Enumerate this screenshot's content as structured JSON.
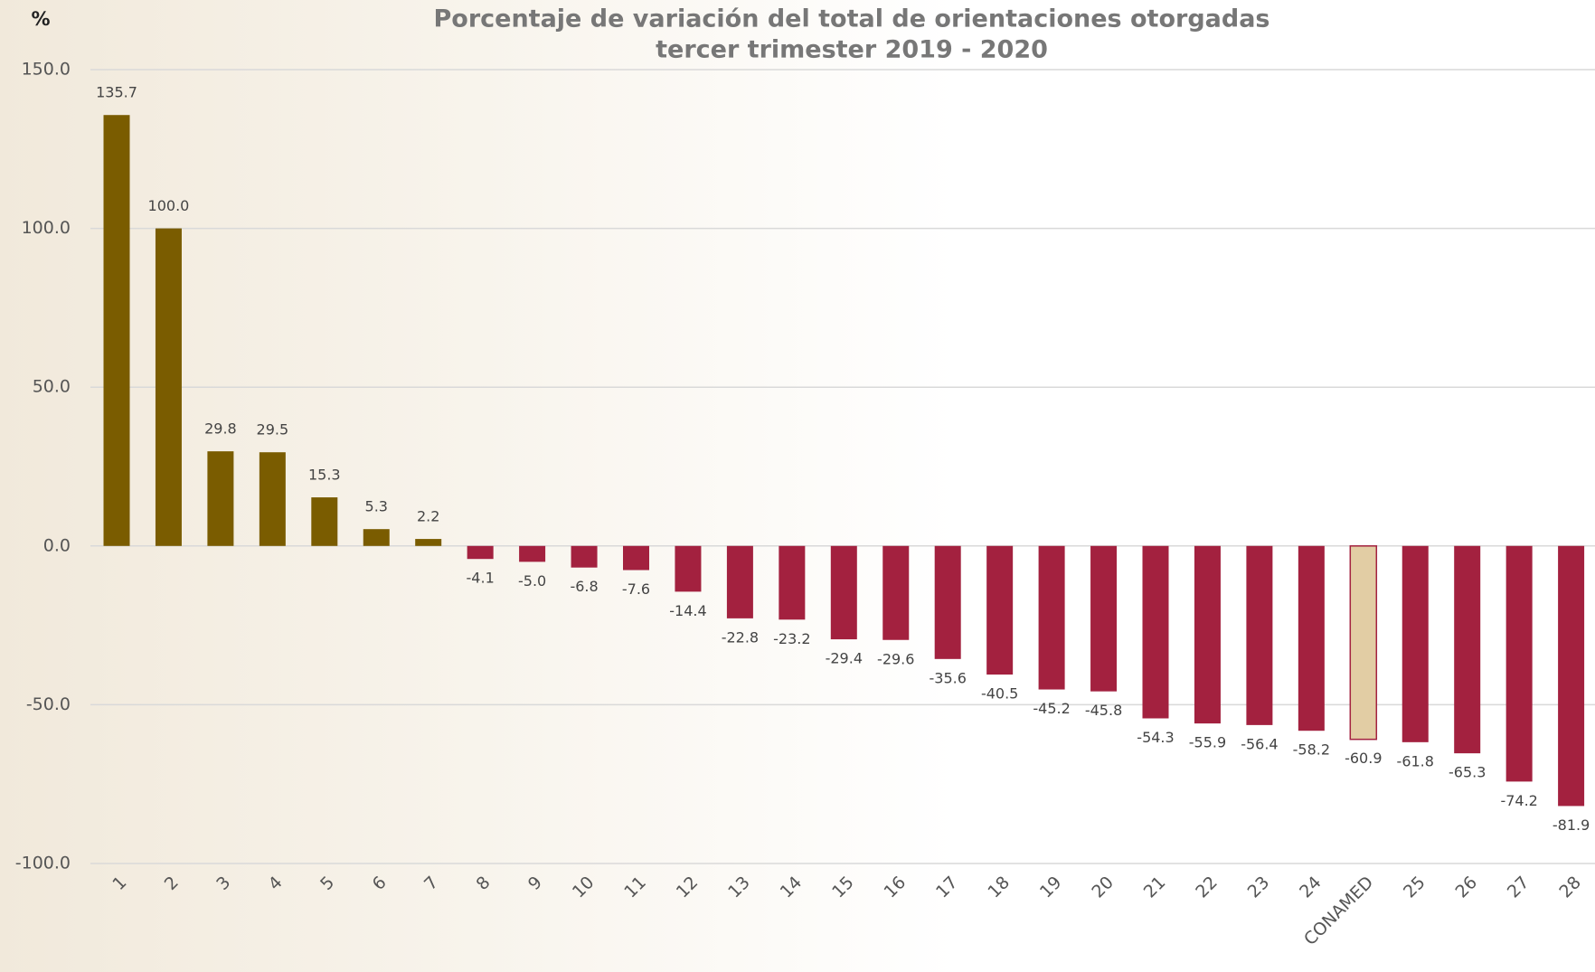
{
  "chart_data": {
    "type": "bar",
    "title": "Porcentaje de variación del total de orientaciones otorgadas",
    "subtitle": "tercer trimester 2019 - 2020",
    "y_axis_label": "%",
    "categories": [
      "1",
      "2",
      "3",
      "4",
      "5",
      "6",
      "7",
      "8",
      "9",
      "10",
      "11",
      "12",
      "13",
      "14",
      "15",
      "16",
      "17",
      "18",
      "19",
      "20",
      "21",
      "22",
      "23",
      "24",
      "CONAMED",
      "25",
      "26",
      "27",
      "28"
    ],
    "values": [
      135.7,
      100.0,
      29.8,
      29.5,
      15.3,
      5.3,
      2.2,
      -4.1,
      -5.0,
      -6.8,
      -7.6,
      -14.4,
      -22.8,
      -23.2,
      -29.4,
      -29.6,
      -35.6,
      -40.5,
      -45.2,
      -45.8,
      -54.3,
      -55.9,
      -56.4,
      -58.2,
      -60.9,
      -61.8,
      -65.3,
      -74.2,
      -81.9
    ],
    "value_labels": [
      "135.7",
      "100.0",
      "29.8",
      "29.5",
      "15.3",
      "5.3",
      "2.2",
      "-4.1",
      "-5.0",
      "-6.8",
      "-7.6",
      "-14.4",
      "-22.8",
      "-23.2",
      "-29.4",
      "-29.6",
      "-35.6",
      "-40.5",
      "-45.2",
      "-45.8",
      "-54.3",
      "-55.9",
      "-56.4",
      "-58.2",
      "-60.9",
      "-61.8",
      "-65.3",
      "-74.2",
      "-81.9"
    ],
    "colors": [
      "#7a5c00",
      "#7a5c00",
      "#7a5c00",
      "#7a5c00",
      "#7a5c00",
      "#7a5c00",
      "#7a5c00",
      "#a3213f",
      "#a3213f",
      "#a3213f",
      "#a3213f",
      "#a3213f",
      "#a3213f",
      "#a3213f",
      "#a3213f",
      "#a3213f",
      "#a3213f",
      "#a3213f",
      "#a3213f",
      "#a3213f",
      "#a3213f",
      "#a3213f",
      "#a3213f",
      "#a3213f",
      "#e2cda4",
      "#a3213f",
      "#a3213f",
      "#a3213f",
      "#a3213f"
    ],
    "ylim": [
      -100,
      150
    ],
    "yticks": [
      {
        "value": -100,
        "label": "-100.0"
      },
      {
        "value": -50,
        "label": "-50.0"
      },
      {
        "value": 0,
        "label": "0.0"
      },
      {
        "value": 50,
        "label": "50.0"
      },
      {
        "value": 100,
        "label": "100.0"
      },
      {
        "value": 150,
        "label": "150.0"
      }
    ],
    "grid": true
  }
}
